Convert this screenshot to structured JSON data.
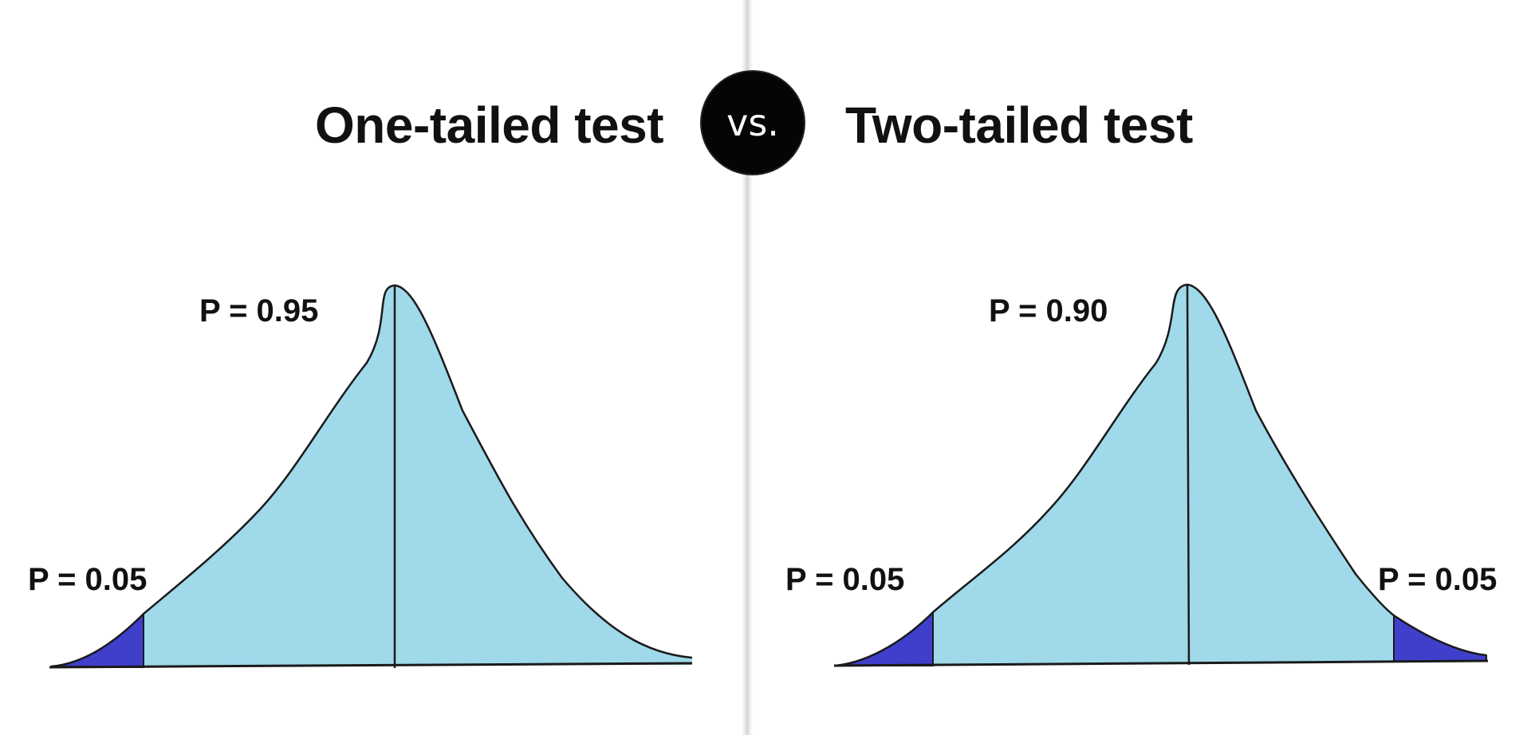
{
  "left_panel": {
    "title": "One-tailed test",
    "center_label": "P = 0.95",
    "tail_label": "P = 0.05"
  },
  "right_panel": {
    "title": "Two-tailed test",
    "center_label": "P = 0.90",
    "left_tail_label": "P = 0.05",
    "right_tail_label": "P = 0.05"
  },
  "vs_badge": {
    "label": "vs."
  },
  "colors": {
    "curve_fill": "#9fd9ea",
    "tail_fill": "#3f3fcc",
    "outline": "#1a1a1a",
    "badge": "#050505"
  }
}
